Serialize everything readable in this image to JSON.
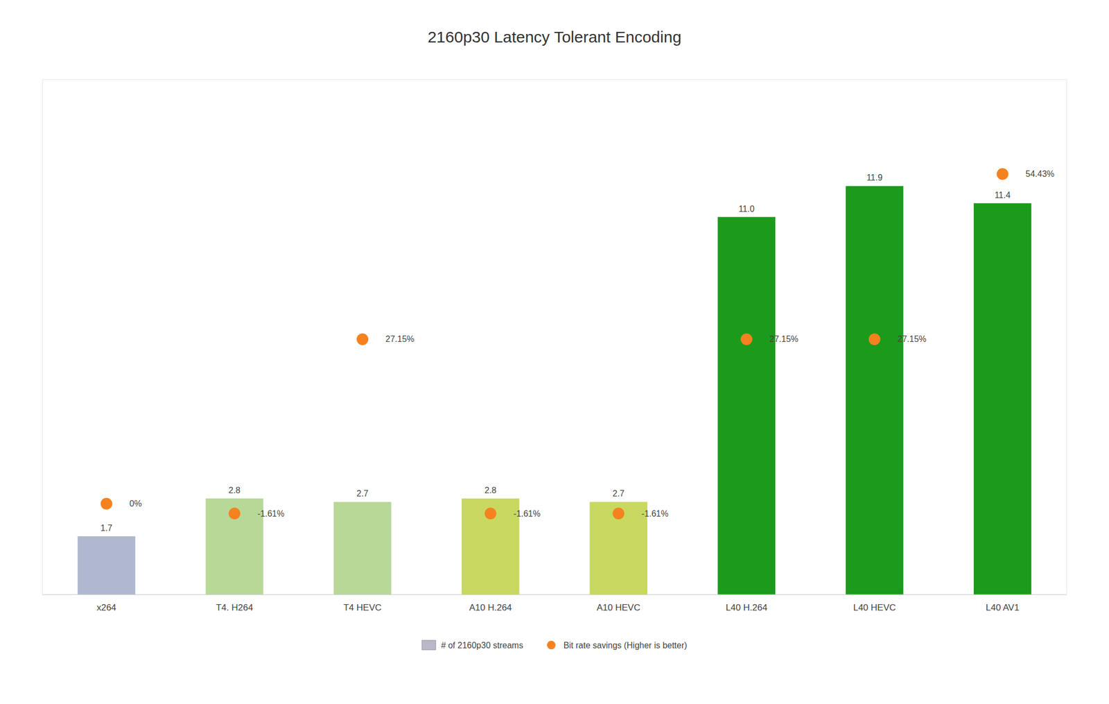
{
  "chart_data": {
    "type": "bar",
    "title": "2160p30 Latency Tolerant Encoding",
    "categories": [
      "x264",
      "T4. H264",
      "T4 HEVC",
      "A10  H.264",
      "A10 HEVC",
      "L40 H.264",
      "L40 HEVC",
      "L40 AV1"
    ],
    "series": [
      {
        "name": "# of 2160p30 streams",
        "type": "bar",
        "color": "#b8b8c8",
        "colors": [
          "#b0b8d0",
          "#b8d898",
          "#b8d898",
          "#c8d860",
          "#c8d860",
          "#1c9a1c",
          "#1c9a1c",
          "#1c9a1c"
        ],
        "values": [
          1.7,
          2.8,
          2.7,
          2.8,
          2.7,
          11.0,
          11.9,
          11.4
        ],
        "value_labels": [
          "1.7",
          "2.8",
          "2.7",
          "2.8",
          "2.7",
          "11.0",
          "11.9",
          "11.4"
        ]
      },
      {
        "name": "Bit rate savings (Higher is better)",
        "type": "scatter",
        "marker": "circle",
        "color": "#f5821e",
        "axis": "y2",
        "values": [
          0.0,
          -1.61,
          27.15,
          -1.61,
          -1.61,
          27.15,
          27.15,
          54.43
        ],
        "value_labels": [
          "0%",
          "-1.61%",
          "27.15%",
          "-1.61%",
          "-1.61%",
          "27.15%",
          "27.15%",
          "54.43%"
        ]
      }
    ],
    "ylim": [
      0,
      15
    ],
    "y2lim": [
      -15,
      70
    ],
    "grid": false,
    "legend": "bottom",
    "data_labels": true,
    "tick_labels": "x"
  }
}
